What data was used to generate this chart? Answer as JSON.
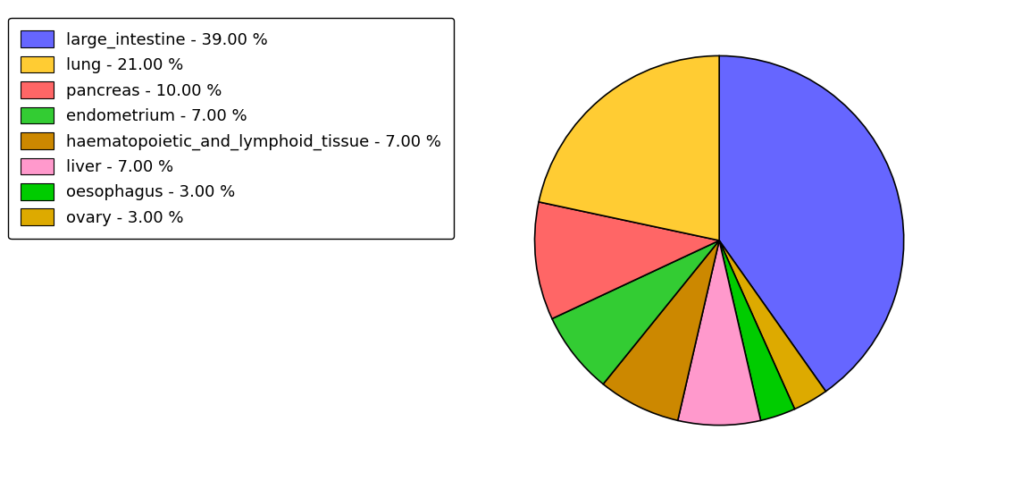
{
  "labels": [
    "large_intestine - 39.00 %",
    "lung - 21.00 %",
    "pancreas - 10.00 %",
    "endometrium - 7.00 %",
    "haematopoietic_and_lymphoid_tissue - 7.00 %",
    "liver - 7.00 %",
    "oesophagus - 3.00 %",
    "ovary - 3.00 %"
  ],
  "values": [
    39,
    21,
    10,
    7,
    7,
    7,
    3,
    3
  ],
  "colors": [
    "#6666ff",
    "#ffcc33",
    "#ff6666",
    "#33cc33",
    "#cc8800",
    "#ff99cc",
    "#00cc00",
    "#ddaa00"
  ],
  "pie_order": [
    0,
    7,
    6,
    5,
    4,
    3,
    2,
    1
  ],
  "startangle": 90,
  "figsize": [
    11.34,
    5.38
  ],
  "dpi": 100,
  "legend_fontsize": 13
}
